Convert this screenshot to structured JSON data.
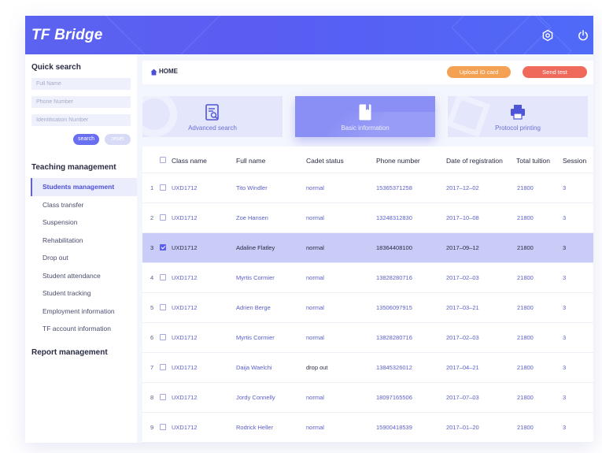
{
  "app": {
    "title": "TF Bridge"
  },
  "header": {
    "settings_icon": "gear-icon",
    "power_icon": "power-icon"
  },
  "quick_search": {
    "title": "Quick search",
    "full_name_placeholder": "Full Name",
    "phone_placeholder": "Phone Number",
    "id_placeholder": "Identification Number",
    "search_label": "search",
    "reset_label": "reset"
  },
  "sidebar": {
    "teaching_title": "Teaching management",
    "items": [
      {
        "label": "Students management",
        "active": true
      },
      {
        "label": "Class transfer"
      },
      {
        "label": "Suspension"
      },
      {
        "label": "Rehabilitation"
      },
      {
        "label": "Drop out"
      },
      {
        "label": "Student attendance"
      },
      {
        "label": "Student tracking"
      },
      {
        "label": "Employment information"
      },
      {
        "label": "TF account information"
      }
    ],
    "report_title": "Report management"
  },
  "breadcrumb": {
    "home": "HOME"
  },
  "actions": {
    "upload": "Upload iD card",
    "send": "Send test"
  },
  "cards": [
    {
      "label": "Advanced search",
      "icon": "document-search-icon"
    },
    {
      "label": "Basic information",
      "icon": "book-icon",
      "active": true
    },
    {
      "label": "Protocol printing",
      "icon": "printer-icon"
    }
  ],
  "table": {
    "headers": [
      "Class name",
      "Full name",
      "Cadet status",
      "Phone number",
      "Date of registration",
      "Total tuition",
      "Session"
    ],
    "rows": [
      {
        "n": "1",
        "cls": "UXD1712",
        "name": "Tito Windler",
        "status": "normal",
        "phone": "15365371258",
        "date": "2017–12–02",
        "tuition": "21800",
        "session": "3"
      },
      {
        "n": "2",
        "cls": "UXD1712",
        "name": "Zoe Hansen",
        "status": "normal",
        "phone": "13248312830",
        "date": "2017–10–08",
        "tuition": "21800",
        "session": "3"
      },
      {
        "n": "3",
        "cls": "UXD1712",
        "name": "Adaline Flatley",
        "status": "normal",
        "phone": "18364408100",
        "date": "2017–09–12",
        "tuition": "21800",
        "session": "3",
        "selected": true
      },
      {
        "n": "4",
        "cls": "UXD1712",
        "name": "Myrtis Cormier",
        "status": "normal",
        "phone": "13828280716",
        "date": "2017–02–03",
        "tuition": "21800",
        "session": "3"
      },
      {
        "n": "5",
        "cls": "UXD1712",
        "name": "Adrien Berge",
        "status": "normal",
        "phone": "13506097915",
        "date": "2017–03–21",
        "tuition": "21800",
        "session": "3"
      },
      {
        "n": "6",
        "cls": "UXD1712",
        "name": "Myrtis Cormier",
        "status": "normal",
        "phone": "13828280716",
        "date": "2017–02–03",
        "tuition": "21800",
        "session": "3"
      },
      {
        "n": "7",
        "cls": "UXD1712",
        "name": "Daija Waelchi",
        "status": "drop out",
        "phone": "13845326012",
        "date": "2017–04–21",
        "tuition": "21800",
        "session": "3"
      },
      {
        "n": "8",
        "cls": "UXD1712",
        "name": "Jordy Connelly",
        "status": "normal",
        "phone": "18097165506",
        "date": "2017–07–03",
        "tuition": "21800",
        "session": "3"
      },
      {
        "n": "9",
        "cls": "UXD1712",
        "name": "Rodrick Heller",
        "status": "normal",
        "phone": "15900418539",
        "date": "2017–01–20",
        "tuition": "21800",
        "session": "3"
      }
    ]
  },
  "colors": {
    "accent": "#5b63f0",
    "orange": "#f5a154",
    "red": "#f06a5c",
    "selected_row": "#c9ccf7"
  }
}
